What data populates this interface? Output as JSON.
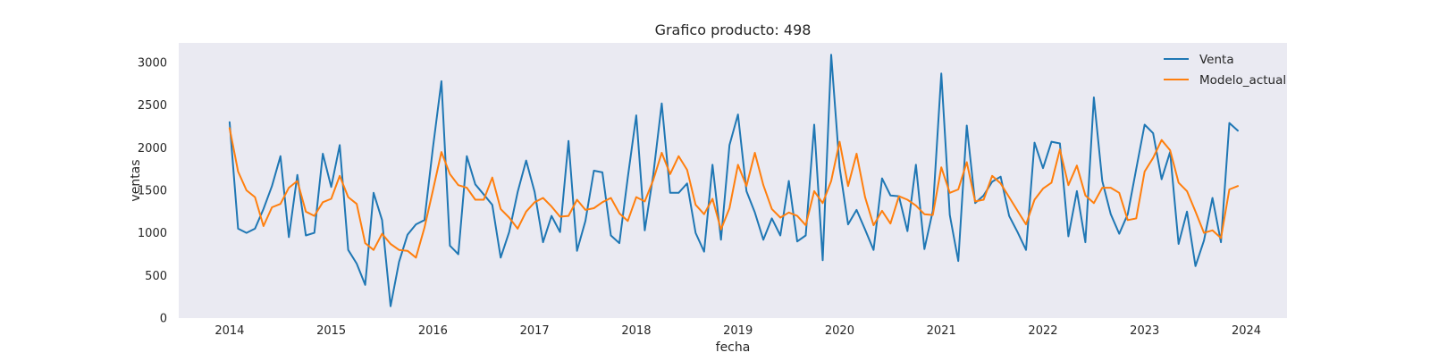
{
  "chart_data": {
    "type": "line",
    "title": "Grafico producto: 498",
    "xlabel": "fecha",
    "ylabel": "ventas",
    "x_start": "2014-01",
    "x_frequency": "monthly",
    "xlim": [
      2013.5,
      2024.4
    ],
    "ylim": [
      0,
      3230
    ],
    "xticks": [
      "2014",
      "2015",
      "2016",
      "2017",
      "2018",
      "2019",
      "2020",
      "2021",
      "2022",
      "2023",
      "2024"
    ],
    "yticks": [
      "0",
      "500",
      "1000",
      "1500",
      "2000",
      "2500",
      "3000"
    ],
    "grid": false,
    "background": "#eaeaf2",
    "legend": {
      "position": "top-right"
    },
    "series": [
      {
        "name": "Venta",
        "color": "#1f77b4",
        "values": [
          2300,
          1050,
          1000,
          1050,
          1280,
          1550,
          1900,
          950,
          1680,
          970,
          1000,
          1930,
          1540,
          2030,
          800,
          640,
          390,
          1470,
          1150,
          140,
          660,
          980,
          1100,
          1150,
          2000,
          2780,
          850,
          750,
          1900,
          1570,
          1450,
          1330,
          710,
          1010,
          1480,
          1850,
          1480,
          890,
          1200,
          1010,
          2080,
          790,
          1140,
          1730,
          1710,
          970,
          880,
          1650,
          2380,
          1030,
          1680,
          2520,
          1470,
          1470,
          1580,
          1000,
          780,
          1800,
          920,
          2030,
          2390,
          1490,
          1240,
          920,
          1170,
          970,
          1610,
          900,
          970,
          2270,
          680,
          3090,
          1770,
          1100,
          1270,
          1040,
          800,
          1640,
          1440,
          1430,
          1020,
          1800,
          810,
          1260,
          2870,
          1210,
          670,
          2260,
          1350,
          1440,
          1600,
          1660,
          1200,
          1010,
          800,
          2060,
          1760,
          2070,
          2050,
          960,
          1490,
          890,
          2590,
          1610,
          1220,
          990,
          1220,
          1750,
          2270,
          2170,
          1630,
          1950,
          870,
          1250,
          610,
          910,
          1410,
          890,
          2290,
          2200
        ]
      },
      {
        "name": "Modelo_actual",
        "color": "#ff7f0e",
        "values": [
          2230,
          1720,
          1500,
          1420,
          1080,
          1300,
          1340,
          1530,
          1610,
          1250,
          1200,
          1360,
          1400,
          1670,
          1420,
          1340,
          880,
          800,
          990,
          870,
          800,
          790,
          710,
          1060,
          1500,
          1950,
          1690,
          1560,
          1530,
          1390,
          1390,
          1650,
          1280,
          1180,
          1050,
          1250,
          1360,
          1410,
          1310,
          1190,
          1200,
          1390,
          1270,
          1290,
          1360,
          1410,
          1230,
          1140,
          1420,
          1370,
          1620,
          1940,
          1690,
          1900,
          1740,
          1330,
          1220,
          1400,
          1040,
          1290,
          1800,
          1550,
          1940,
          1560,
          1280,
          1180,
          1240,
          1200,
          1090,
          1490,
          1350,
          1610,
          2070,
          1550,
          1930,
          1420,
          1090,
          1260,
          1110,
          1430,
          1390,
          1320,
          1220,
          1210,
          1770,
          1470,
          1510,
          1830,
          1370,
          1390,
          1670,
          1580,
          1420,
          1260,
          1100,
          1390,
          1520,
          1590,
          1980,
          1560,
          1790,
          1440,
          1350,
          1530,
          1530,
          1470,
          1150,
          1170,
          1720,
          1880,
          2090,
          1970,
          1590,
          1490,
          1250,
          1000,
          1030,
          940,
          1510,
          1550
        ]
      }
    ]
  }
}
